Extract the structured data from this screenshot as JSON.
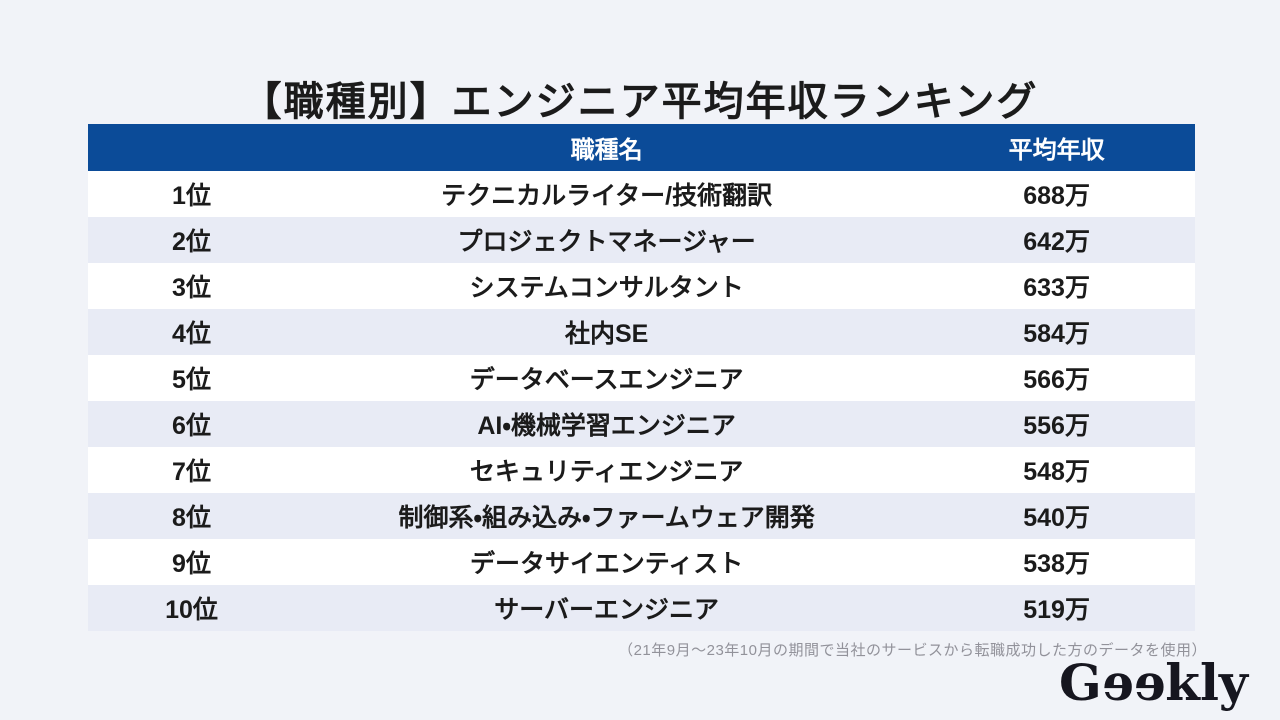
{
  "chart_data": {
    "type": "table",
    "title": "【職種別】エンジニア平均年収ランキング",
    "headers": {
      "rank": "",
      "job": "職種名",
      "salary": "平均年収"
    },
    "rows": [
      {
        "rank": "1位",
        "job": "テクニカルライター/技術翻訳",
        "salary": "688万"
      },
      {
        "rank": "2位",
        "job": "プロジェクトマネージャー",
        "salary": "642万"
      },
      {
        "rank": "3位",
        "job": "システムコンサルタント",
        "salary": "633万"
      },
      {
        "rank": "4位",
        "job": "社内SE",
        "salary": "584万"
      },
      {
        "rank": "5位",
        "job": "データベースエンジニア",
        "salary": "566万"
      },
      {
        "rank": "6位",
        "job": "AI・機械学習エンジニア",
        "salary": "556万"
      },
      {
        "rank": "7位",
        "job": "セキュリティエンジニア",
        "salary": "548万"
      },
      {
        "rank": "8位",
        "job": "制御系・組み込み・ファームウェア開発",
        "salary": "540万"
      },
      {
        "rank": "9位",
        "job": "データサイエンティスト",
        "salary": "538万"
      },
      {
        "rank": "10位",
        "job": "サーバーエンジニア",
        "salary": "519万"
      }
    ],
    "values_man_yen": [
      688,
      642,
      633,
      584,
      566,
      556,
      548,
      540,
      538,
      519
    ],
    "footnote": "（21年9月～23年10月の期間で当社のサービスから転職成功した方のデータを使用）"
  },
  "logo": {
    "prefix": "G",
    "mirrored": "ee",
    "suffix": "kly"
  },
  "colors": {
    "page_bg": "#f1f3f8",
    "header_bg": "#0b4b98",
    "row_bg": "#ffffff",
    "row_alt_bg": "#e8ebf5",
    "text": "#1b1b1b",
    "footnote_text": "#92929a",
    "logo_text": "#16161f"
  }
}
